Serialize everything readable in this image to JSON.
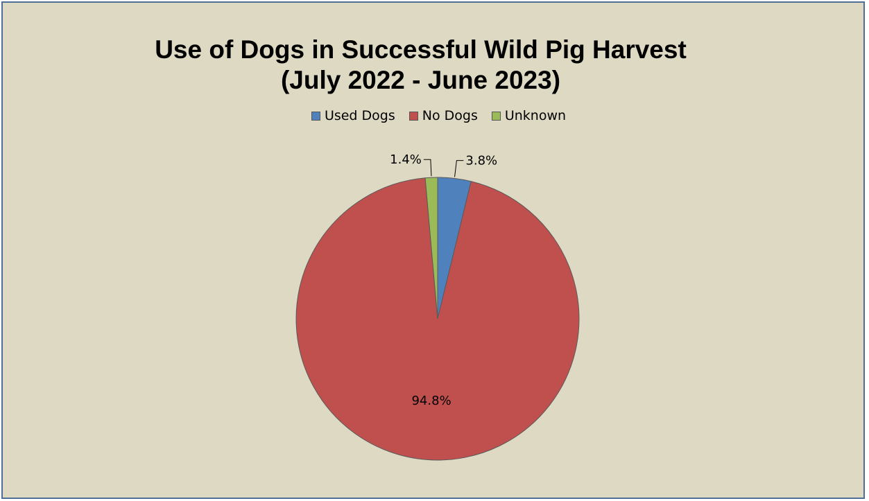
{
  "chart_data": {
    "type": "pie",
    "title_line1": "Use of Dogs in Successful Wild Pig Harvest",
    "title_line2": "(July 2022 - June 2023)",
    "legend_position": "top",
    "series": [
      {
        "name": "Used Dogs",
        "value": 3.8,
        "label": "3.8%",
        "color": "#4f81bd"
      },
      {
        "name": "No Dogs",
        "value": 94.8,
        "label": "94.8%",
        "color": "#c0504d"
      },
      {
        "name": "Unknown",
        "value": 1.4,
        "label": "1.4%",
        "color": "#9bbb59"
      }
    ]
  },
  "colors": {
    "background": "#ddd9c3",
    "border": "#4f6e96"
  }
}
